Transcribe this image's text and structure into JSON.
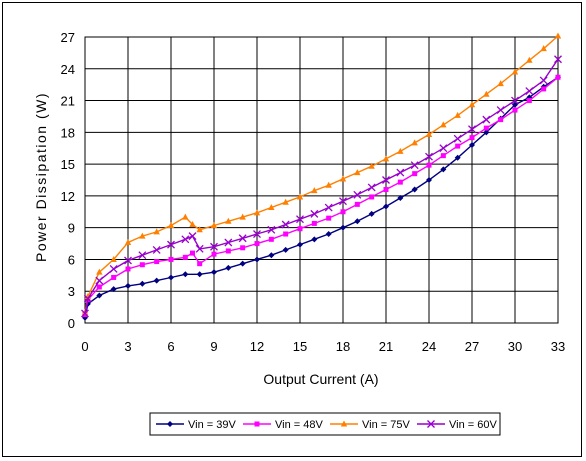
{
  "chart_data": {
    "type": "line",
    "title": "",
    "xlabel": "Output Current (A)",
    "ylabel": "Power Dissipation (W)",
    "xlim": [
      0,
      33
    ],
    "ylim": [
      0,
      27
    ],
    "xticks": [
      0,
      3,
      6,
      9,
      12,
      15,
      18,
      21,
      24,
      27,
      30,
      33
    ],
    "yticks": [
      0,
      3,
      6,
      9,
      12,
      15,
      18,
      21,
      24,
      27
    ],
    "grid": true,
    "legend_position": "bottom",
    "series": [
      {
        "name": "Vin = 39V",
        "color": "#000080",
        "marker": "diamond",
        "x": [
          0,
          0.2,
          1,
          2,
          3,
          4,
          5,
          6,
          7,
          8,
          9,
          10,
          11,
          12,
          13,
          14,
          15,
          16,
          17,
          18,
          19,
          20,
          21,
          22,
          23,
          24,
          25,
          26,
          27,
          28,
          29,
          30,
          31,
          32,
          33
        ],
        "y": [
          0.5,
          1.8,
          2.6,
          3.2,
          3.5,
          3.7,
          4.0,
          4.3,
          4.6,
          4.6,
          4.8,
          5.2,
          5.6,
          6.0,
          6.4,
          6.9,
          7.4,
          7.9,
          8.4,
          9.0,
          9.6,
          10.3,
          11.0,
          11.8,
          12.6,
          13.5,
          14.5,
          15.6,
          16.8,
          18.0,
          19.3,
          20.6,
          21.3,
          22.3,
          23.2
        ]
      },
      {
        "name": "Vin = 48V",
        "color": "#ff00ff",
        "marker": "square",
        "x": [
          0,
          0.2,
          1,
          2,
          3,
          4,
          5,
          6,
          7,
          7.5,
          8,
          9,
          10,
          11,
          12,
          13,
          14,
          15,
          16,
          17,
          18,
          19,
          20,
          21,
          22,
          23,
          24,
          25,
          26,
          27,
          28,
          29,
          30,
          31,
          32,
          33
        ],
        "y": [
          0.8,
          2.2,
          3.4,
          4.3,
          5.1,
          5.5,
          5.8,
          6.0,
          6.2,
          6.6,
          5.6,
          6.5,
          6.8,
          7.1,
          7.5,
          7.9,
          8.4,
          8.9,
          9.4,
          9.9,
          10.5,
          11.2,
          11.9,
          12.6,
          13.3,
          14.1,
          14.9,
          15.8,
          16.7,
          17.5,
          18.4,
          19.2,
          20.1,
          21.0,
          22.1,
          23.2
        ]
      },
      {
        "name": "Vin = 75V",
        "color": "#ff8000",
        "marker": "triangle",
        "x": [
          0,
          0.2,
          1,
          2,
          3,
          4,
          5,
          6,
          7,
          7.5,
          8,
          9,
          10,
          11,
          12,
          13,
          14,
          15,
          16,
          17,
          18,
          19,
          20,
          21,
          22,
          23,
          24,
          25,
          26,
          27,
          28,
          29,
          30,
          31,
          32,
          33
        ],
        "y": [
          1.0,
          2.5,
          4.8,
          6.0,
          7.6,
          8.2,
          8.6,
          9.2,
          10.0,
          9.3,
          8.8,
          9.2,
          9.6,
          10.0,
          10.4,
          10.9,
          11.4,
          11.9,
          12.5,
          13.0,
          13.6,
          14.2,
          14.8,
          15.5,
          16.2,
          17.0,
          17.8,
          18.7,
          19.6,
          20.6,
          21.6,
          22.6,
          23.7,
          24.8,
          25.9,
          27.1
        ]
      },
      {
        "name": "Vin = 60V",
        "color": "#9900cc",
        "marker": "x",
        "x": [
          0,
          0.2,
          1,
          2,
          3,
          4,
          5,
          6,
          7,
          7.5,
          8,
          9,
          10,
          11,
          12,
          13,
          14,
          15,
          16,
          17,
          18,
          19,
          20,
          21,
          22,
          23,
          24,
          25,
          26,
          27,
          28,
          29,
          30,
          31,
          32,
          33
        ],
        "y": [
          0.9,
          2.3,
          4.0,
          5.1,
          5.9,
          6.4,
          6.9,
          7.4,
          7.9,
          8.2,
          7.0,
          7.2,
          7.6,
          8.0,
          8.4,
          8.8,
          9.3,
          9.8,
          10.3,
          10.9,
          11.5,
          12.1,
          12.8,
          13.5,
          14.2,
          14.9,
          15.7,
          16.5,
          17.4,
          18.3,
          19.2,
          20.1,
          21.0,
          21.9,
          22.9,
          24.9
        ]
      }
    ]
  }
}
